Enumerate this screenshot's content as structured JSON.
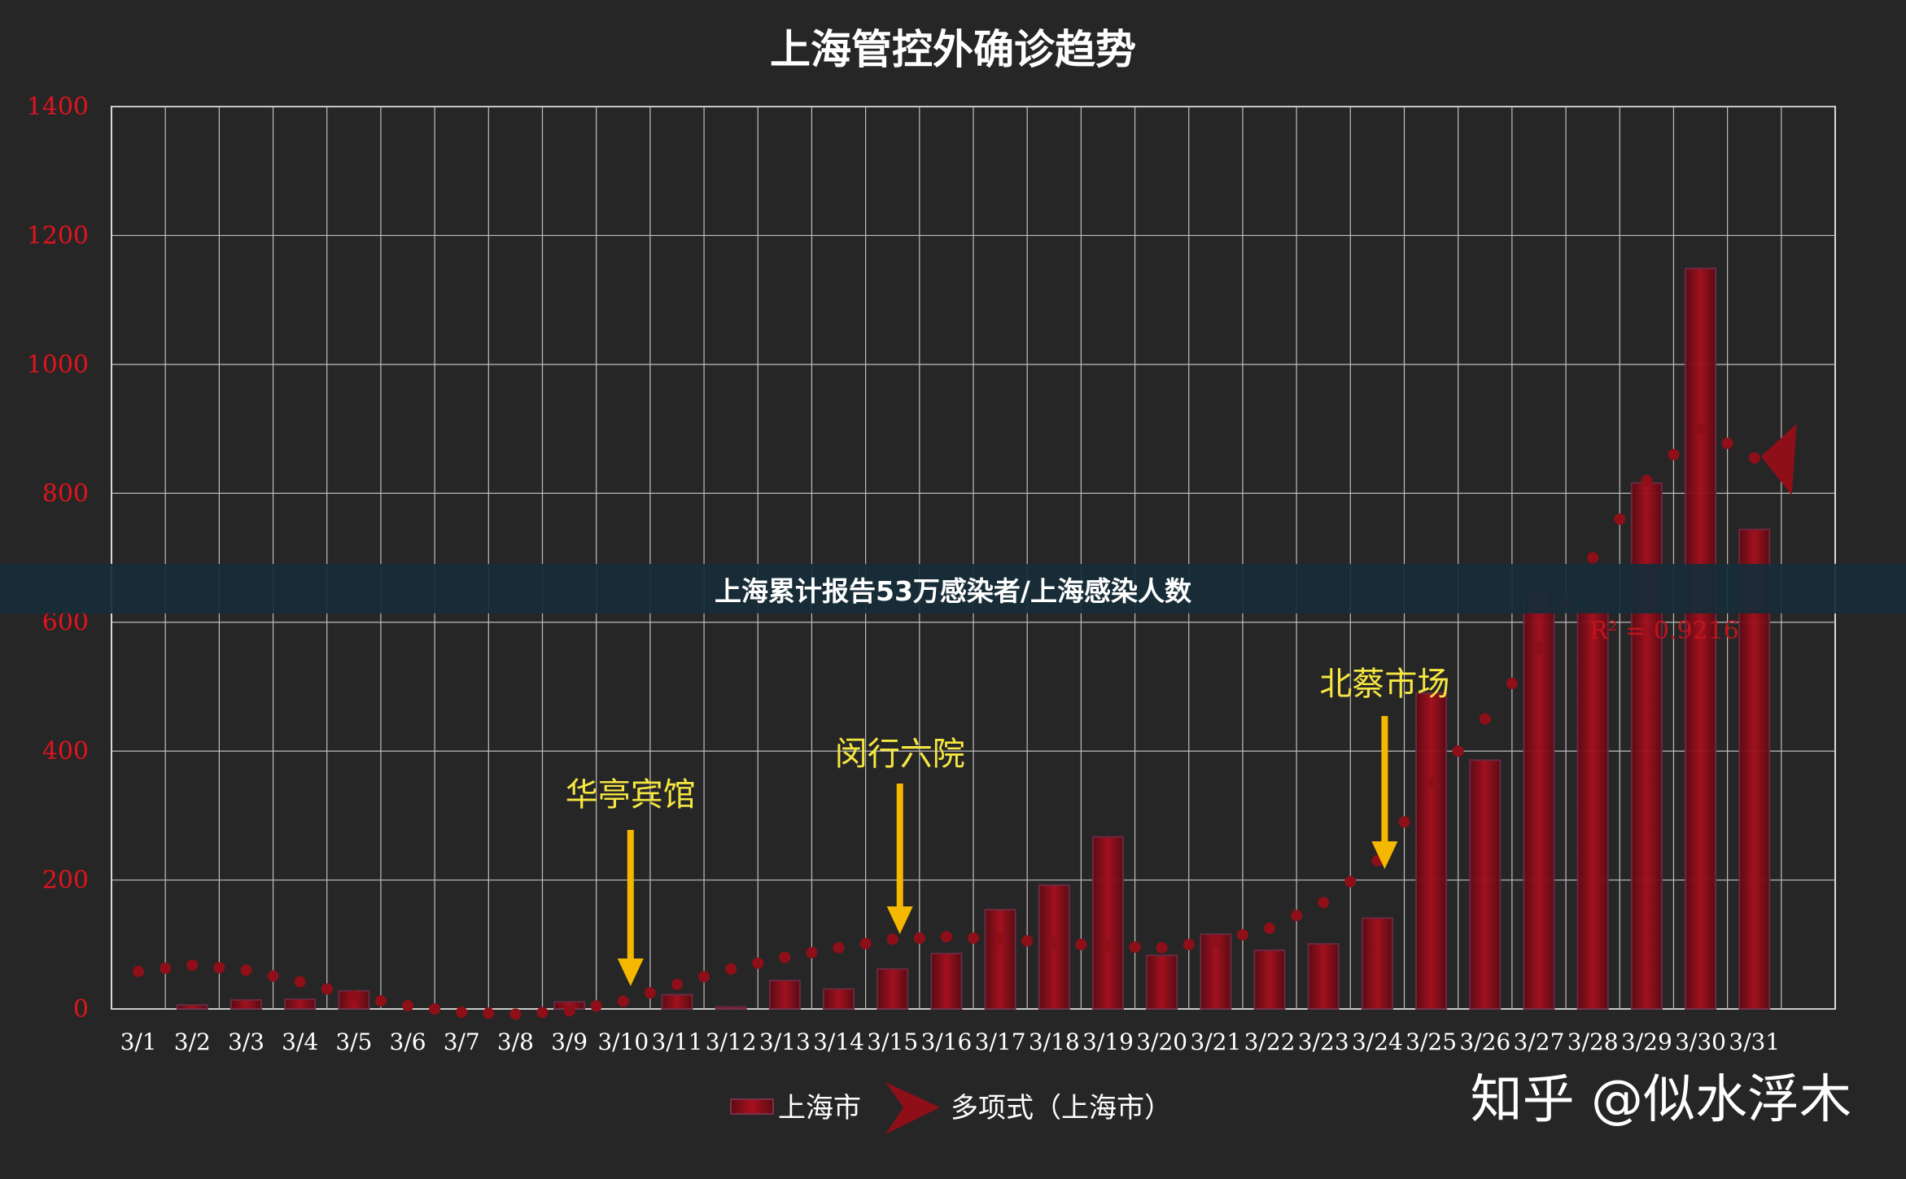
{
  "banner": {
    "text": "上海累计报告53万感染者/上海感染人数"
  },
  "watermark": {
    "text": "知乎 @似水浮木"
  },
  "chart_data": {
    "type": "bar",
    "title": "上海管控外确诊趋势",
    "xlabel": "",
    "ylabel": "",
    "ylim": [
      0,
      1400
    ],
    "yticks": [
      0,
      200,
      400,
      600,
      800,
      1000,
      1200,
      1400
    ],
    "grid": true,
    "legend_position": "bottom",
    "categories": [
      "3/1",
      "3/2",
      "3/3",
      "3/4",
      "3/5",
      "3/6",
      "3/7",
      "3/8",
      "3/9",
      "3/10",
      "3/11",
      "3/12",
      "3/13",
      "3/14",
      "3/15",
      "3/16",
      "3/17",
      "3/18",
      "3/19",
      "3/20",
      "3/21",
      "3/22",
      "3/23",
      "3/24",
      "3/25",
      "3/26",
      "3/27",
      "3/28",
      "3/29",
      "3/30",
      "3/31"
    ],
    "series": [
      {
        "name": "上海市",
        "type": "bar",
        "color": "#9b0f1c",
        "values": [
          0,
          6,
          14,
          15,
          28,
          0,
          0,
          0,
          11,
          0,
          22,
          3,
          44,
          31,
          62,
          86,
          154,
          192,
          267,
          83,
          116,
          91,
          101,
          141,
          490,
          386,
          648,
          621,
          816,
          1149,
          744
        ]
      },
      {
        "name": "多项式（上海市）",
        "type": "line",
        "style": "dotted",
        "color": "#8e0f18",
        "values": [
          58,
          68,
          60,
          42,
          20,
          5,
          -5,
          -8,
          -3,
          12,
          38,
          62,
          80,
          95,
          108,
          112,
          108,
          103,
          97,
          95,
          105,
          125,
          165,
          230,
          350,
          450,
          560,
          700,
          820,
          900,
          855
        ]
      }
    ],
    "annotations": [
      {
        "label": "华亭宾馆",
        "category": "3/10"
      },
      {
        "label": "闵行六院",
        "category": "3/15"
      },
      {
        "label": "北蔡市场",
        "category": "3/24"
      }
    ],
    "r_squared_label": "R² = 0.9216",
    "colors": {
      "background": "#262626",
      "annotation_text": "#f5e642",
      "arrow": "#f5b800",
      "ytick": "#e0141e",
      "grid": "#bfbfbf"
    }
  }
}
